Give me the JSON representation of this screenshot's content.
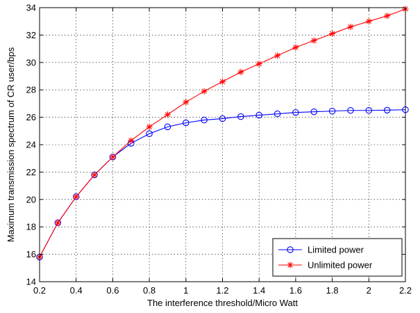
{
  "chart_data": {
    "type": "line",
    "title": "",
    "xlabel": "The interference threshold/Micro Watt",
    "ylabel": "Maximum transmission spectrum of CR user/bps",
    "xlim": [
      0.2,
      2.2
    ],
    "ylim": [
      14,
      34
    ],
    "xticks": [
      "0.2",
      "0.4",
      "0.6",
      "0.8",
      "1",
      "1.2",
      "1.4",
      "1.6",
      "1.8",
      "2",
      "2.2"
    ],
    "yticks": [
      "14",
      "16",
      "18",
      "20",
      "22",
      "24",
      "26",
      "28",
      "30",
      "32",
      "34"
    ],
    "grid": true,
    "legend_position": "bottom-right",
    "x": [
      0.2,
      0.3,
      0.4,
      0.5,
      0.6,
      0.7,
      0.8,
      0.9,
      1.0,
      1.1,
      1.2,
      1.3,
      1.4,
      1.5,
      1.6,
      1.7,
      1.8,
      1.9,
      2.0,
      2.1,
      2.2
    ],
    "series": [
      {
        "name": "Limited power",
        "color": "#0000ff",
        "marker": "circle",
        "values": [
          15.8,
          18.3,
          20.2,
          21.8,
          23.1,
          24.1,
          24.8,
          25.3,
          25.6,
          25.8,
          25.9,
          26.05,
          26.15,
          26.25,
          26.35,
          26.4,
          26.45,
          26.5,
          26.5,
          26.52,
          26.55
        ]
      },
      {
        "name": "Unlimited power",
        "color": "#ff0000",
        "marker": "star",
        "values": [
          15.8,
          18.3,
          20.2,
          21.8,
          23.1,
          24.3,
          25.3,
          26.2,
          27.1,
          27.9,
          28.6,
          29.3,
          29.9,
          30.5,
          31.1,
          31.6,
          32.1,
          32.6,
          33.0,
          33.4,
          33.9
        ]
      }
    ]
  }
}
